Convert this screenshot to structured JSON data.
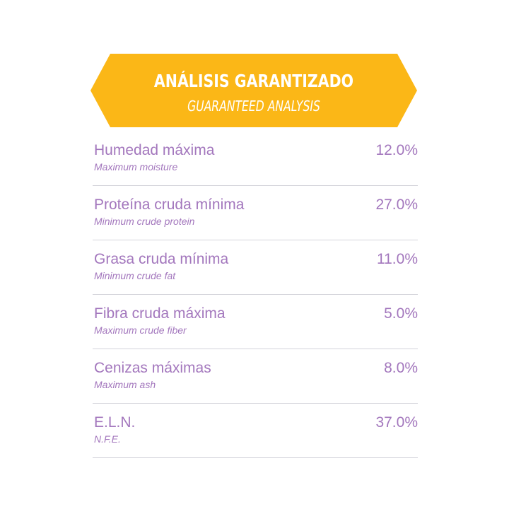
{
  "header": {
    "title": "ANÁLISIS GARANTIZADO",
    "subtitle": "GUARANTEED ANALYSIS",
    "color": "#fbb717"
  },
  "rows": [
    {
      "name": "Humedad máxima",
      "sub": "Maximum moisture",
      "value": "12.0%"
    },
    {
      "name": "Proteína cruda mínima",
      "sub": "Minimum crude protein",
      "value": "27.0%"
    },
    {
      "name": "Grasa cruda mínima",
      "sub": "Minimum crude fat",
      "value": "11.0%"
    },
    {
      "name": "Fibra cruda máxima",
      "sub": "Maximum crude fiber",
      "value": "5.0%"
    },
    {
      "name": "Cenizas máximas",
      "sub": "Maximum ash",
      "value": "8.0%"
    },
    {
      "name": "E.L.N.",
      "sub": "N.F.E.",
      "value": "37.0%"
    }
  ],
  "colors": {
    "text": "#a377bd",
    "divider": "#d3d3da"
  }
}
